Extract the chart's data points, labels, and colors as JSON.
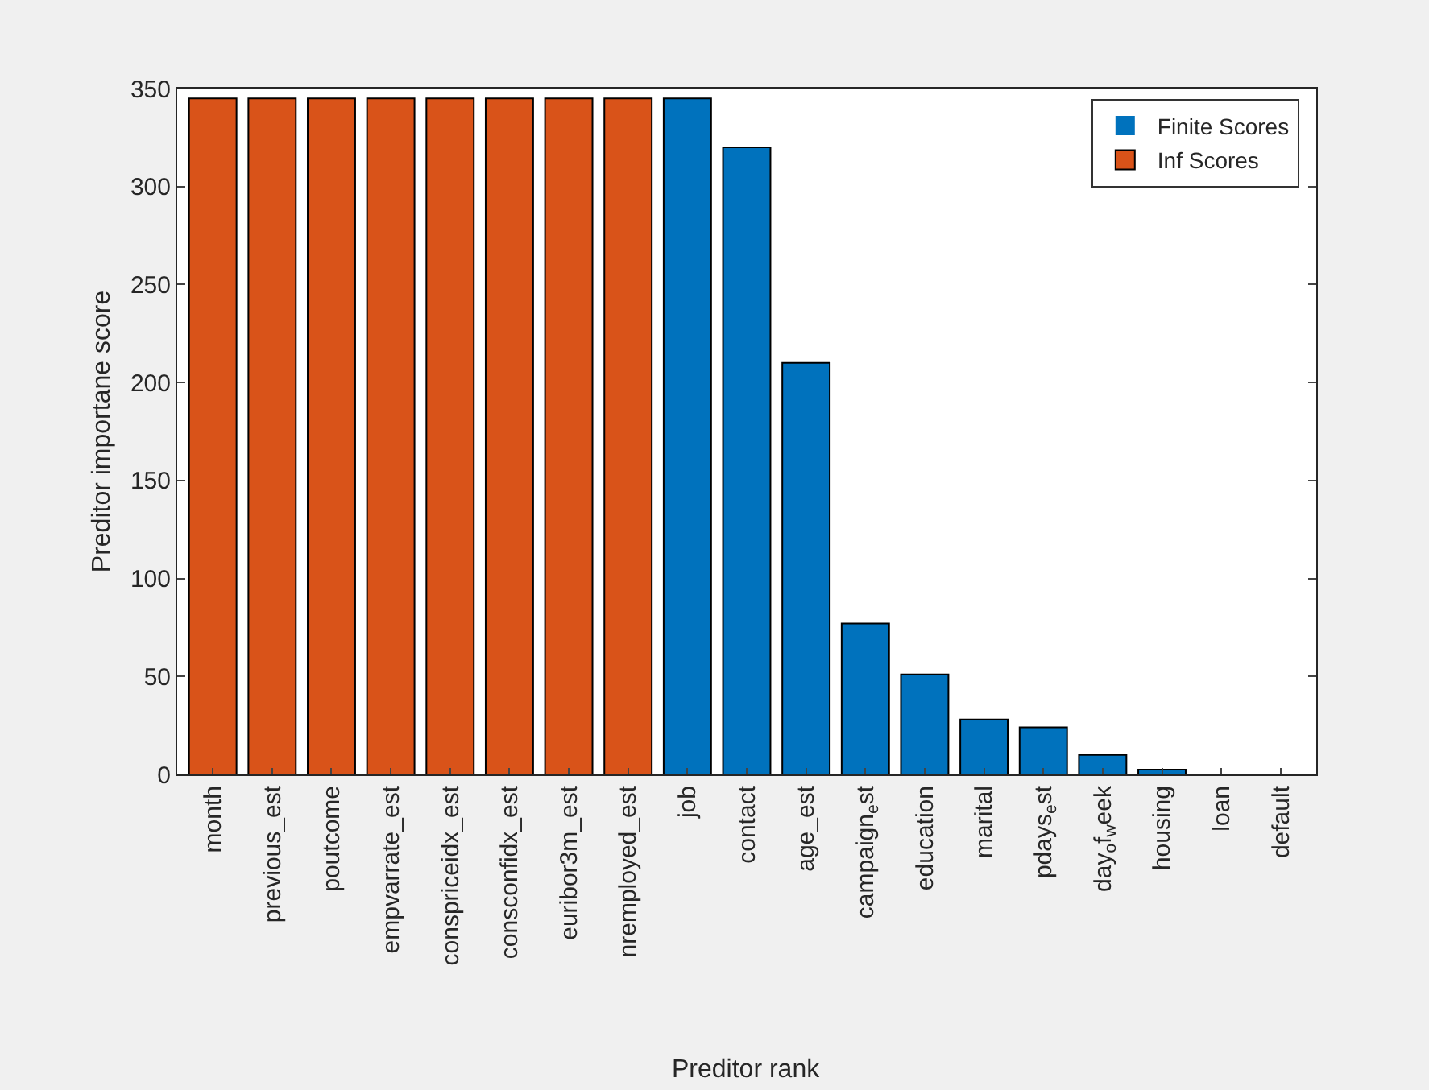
{
  "chart_data": {
    "type": "bar",
    "xlabel": "Preditor rank",
    "ylabel": "Preditor importane score",
    "categories": [
      "month",
      "previous_est",
      "poutcome",
      "empvarrate_est",
      "conspriceidx_est",
      "consconfidx_est",
      "euribor3m_est",
      "nremployed_est",
      "job",
      "contact",
      "age_est",
      "campaign$_{e}$st",
      "education",
      "marital",
      "pdays$_{e}$st",
      "day$_{o}$f$_{w}$eek",
      "housing",
      "loan",
      "default"
    ],
    "series": [
      {
        "name": "Finite Scores",
        "color": "#0072bd",
        "values": [
          null,
          null,
          null,
          null,
          null,
          null,
          null,
          null,
          345,
          320,
          210,
          77,
          51,
          28,
          24,
          10,
          2.5,
          0,
          0
        ]
      },
      {
        "name": "Inf Scores",
        "color": "#d95319",
        "values": [
          345,
          345,
          345,
          345,
          345,
          345,
          345,
          345,
          null,
          null,
          null,
          null,
          null,
          null,
          null,
          null,
          null,
          null,
          null
        ]
      }
    ],
    "ylim": [
      0,
      350
    ],
    "yticks": [
      0,
      50,
      100,
      150,
      200,
      250,
      300,
      350
    ],
    "grid": false,
    "legend": "top right"
  }
}
